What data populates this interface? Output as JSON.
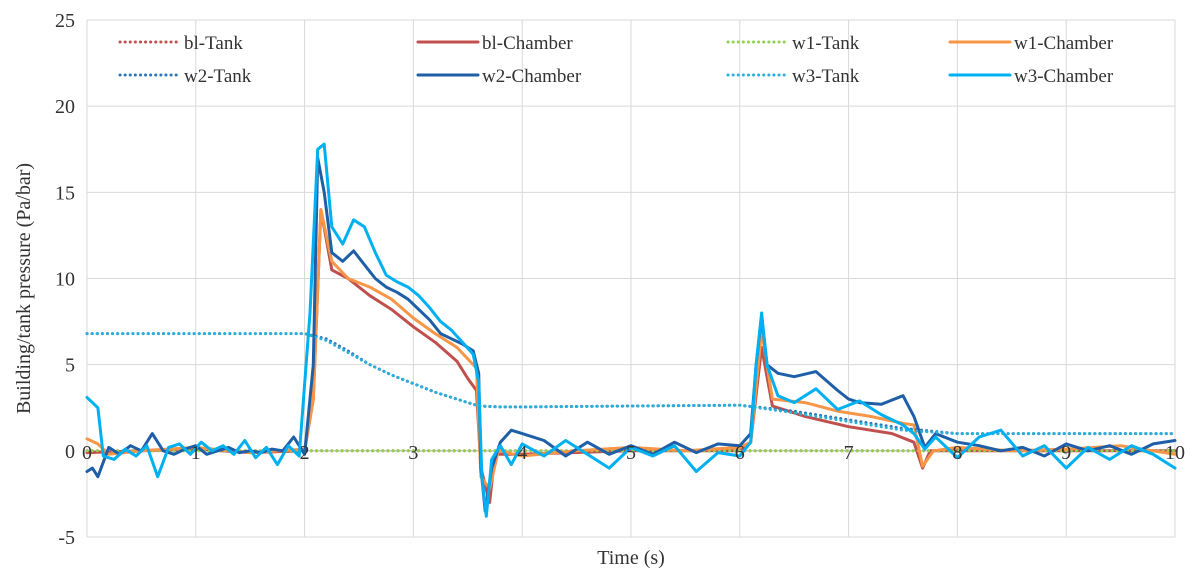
{
  "chart_data": {
    "type": "line",
    "title": "",
    "xlabel": "Time (s)",
    "ylabel": "Building/tank pressure (Pa/bar)",
    "xlim": [
      0,
      10
    ],
    "ylim": [
      -5,
      25
    ],
    "x_ticks": [
      0,
      1,
      2,
      3,
      4,
      5,
      6,
      7,
      8,
      9,
      10
    ],
    "y_ticks": [
      -5,
      0,
      5,
      10,
      15,
      20,
      25
    ],
    "grid": true,
    "legend_position": "top",
    "series": [
      {
        "name": "bl-Tank",
        "color": "#c0504d",
        "style": "dotted",
        "points": [
          [
            0,
            0
          ],
          [
            2,
            0
          ],
          [
            3.6,
            0
          ],
          [
            4,
            0
          ],
          [
            6,
            0
          ],
          [
            8,
            0
          ],
          [
            10,
            0
          ]
        ]
      },
      {
        "name": "bl-Chamber",
        "color": "#c0504d",
        "style": "solid",
        "points": [
          [
            0,
            -0.1
          ],
          [
            0.5,
            0
          ],
          [
            1,
            0.1
          ],
          [
            1.5,
            -0.1
          ],
          [
            2,
            0
          ],
          [
            2.08,
            3
          ],
          [
            2.15,
            14
          ],
          [
            2.25,
            10.5
          ],
          [
            2.4,
            10
          ],
          [
            2.6,
            9
          ],
          [
            2.8,
            8.2
          ],
          [
            3.0,
            7.2
          ],
          [
            3.2,
            6.3
          ],
          [
            3.4,
            5.2
          ],
          [
            3.5,
            4.2
          ],
          [
            3.58,
            3.5
          ],
          [
            3.62,
            -1
          ],
          [
            3.7,
            -3
          ],
          [
            3.75,
            -0.2
          ],
          [
            4,
            -0.2
          ],
          [
            5,
            0
          ],
          [
            6,
            0
          ],
          [
            6.1,
            0.5
          ],
          [
            6.2,
            6
          ],
          [
            6.3,
            2.6
          ],
          [
            6.6,
            2
          ],
          [
            7,
            1.4
          ],
          [
            7.4,
            1
          ],
          [
            7.6,
            0.5
          ],
          [
            7.68,
            -1
          ],
          [
            7.75,
            0
          ],
          [
            8,
            0
          ],
          [
            9,
            0
          ],
          [
            10,
            0
          ]
        ]
      },
      {
        "name": "w1-Tank",
        "color": "#92d050",
        "style": "dotted",
        "points": [
          [
            0,
            0
          ],
          [
            2,
            0
          ],
          [
            4,
            0
          ],
          [
            6,
            0
          ],
          [
            8,
            0
          ],
          [
            10,
            0
          ]
        ]
      },
      {
        "name": "w1-Chamber",
        "color": "#f79646",
        "style": "solid",
        "points": [
          [
            0,
            0.7
          ],
          [
            0.1,
            0.4
          ],
          [
            0.2,
            -0.2
          ],
          [
            0.5,
            0
          ],
          [
            1,
            0.2
          ],
          [
            1.5,
            -0.1
          ],
          [
            2,
            0.1
          ],
          [
            2.08,
            3
          ],
          [
            2.15,
            14
          ],
          [
            2.25,
            11
          ],
          [
            2.4,
            10
          ],
          [
            2.6,
            9.5
          ],
          [
            2.8,
            8.8
          ],
          [
            3.0,
            7.7
          ],
          [
            3.2,
            6.8
          ],
          [
            3.4,
            6
          ],
          [
            3.58,
            4.8
          ],
          [
            3.62,
            -1.5
          ],
          [
            3.7,
            -2.2
          ],
          [
            3.78,
            0
          ],
          [
            4,
            -0.3
          ],
          [
            4.5,
            0
          ],
          [
            5,
            0.2
          ],
          [
            5.5,
            0
          ],
          [
            6,
            0.2
          ],
          [
            6.1,
            0.5
          ],
          [
            6.2,
            7
          ],
          [
            6.3,
            3
          ],
          [
            6.6,
            2.8
          ],
          [
            6.9,
            2.3
          ],
          [
            7.2,
            2
          ],
          [
            7.5,
            1.6
          ],
          [
            7.6,
            1.5
          ],
          [
            7.68,
            -0.9
          ],
          [
            7.78,
            0
          ],
          [
            8,
            0.2
          ],
          [
            8.5,
            0
          ],
          [
            9,
            0.1
          ],
          [
            9.5,
            0.3
          ],
          [
            10,
            -0.2
          ]
        ]
      },
      {
        "name": "w2-Tank",
        "color": "#2e75b6",
        "style": "dotted",
        "points": [
          [
            0,
            6.8
          ],
          [
            0.5,
            6.8
          ],
          [
            1,
            6.8
          ],
          [
            1.5,
            6.8
          ],
          [
            2,
            6.8
          ],
          [
            2.2,
            6.5
          ],
          [
            2.4,
            5.8
          ],
          [
            2.6,
            5.0
          ],
          [
            2.8,
            4.4
          ],
          [
            3.0,
            3.9
          ],
          [
            3.2,
            3.4
          ],
          [
            3.4,
            3.0
          ],
          [
            3.6,
            2.6
          ],
          [
            3.8,
            2.55
          ],
          [
            4,
            2.55
          ],
          [
            5,
            2.6
          ],
          [
            6,
            2.65
          ],
          [
            6.5,
            2.3
          ],
          [
            7,
            1.8
          ],
          [
            7.5,
            1.3
          ],
          [
            8,
            1.0
          ],
          [
            9,
            1.0
          ],
          [
            10,
            1.0
          ]
        ]
      },
      {
        "name": "w2-Chamber",
        "color": "#1f5fa8",
        "style": "solid",
        "points": [
          [
            0,
            -1.2
          ],
          [
            0.05,
            -1.0
          ],
          [
            0.1,
            -1.5
          ],
          [
            0.2,
            0.2
          ],
          [
            0.3,
            -0.2
          ],
          [
            0.4,
            0.3
          ],
          [
            0.5,
            0
          ],
          [
            0.6,
            1.0
          ],
          [
            0.7,
            0
          ],
          [
            0.8,
            -0.2
          ],
          [
            0.9,
            0.1
          ],
          [
            1.0,
            0.3
          ],
          [
            1.1,
            -0.2
          ],
          [
            1.2,
            0
          ],
          [
            1.3,
            0.2
          ],
          [
            1.4,
            -0.1
          ],
          [
            1.5,
            0
          ],
          [
            1.6,
            -0.1
          ],
          [
            1.7,
            0.1
          ],
          [
            1.8,
            0
          ],
          [
            1.9,
            0.8
          ],
          [
            2.0,
            -0.2
          ],
          [
            2.08,
            5
          ],
          [
            2.12,
            17
          ],
          [
            2.18,
            15
          ],
          [
            2.25,
            11.5
          ],
          [
            2.35,
            11
          ],
          [
            2.45,
            11.6
          ],
          [
            2.55,
            10.8
          ],
          [
            2.65,
            10
          ],
          [
            2.75,
            9.5
          ],
          [
            2.85,
            9.2
          ],
          [
            2.95,
            8.8
          ],
          [
            3.05,
            8.2
          ],
          [
            3.15,
            7.6
          ],
          [
            3.25,
            6.8
          ],
          [
            3.35,
            6.5
          ],
          [
            3.45,
            6.2
          ],
          [
            3.55,
            5.8
          ],
          [
            3.6,
            4.5
          ],
          [
            3.62,
            -1.0
          ],
          [
            3.66,
            -3.5
          ],
          [
            3.72,
            -1.0
          ],
          [
            3.8,
            0.5
          ],
          [
            3.9,
            1.2
          ],
          [
            4.0,
            1.0
          ],
          [
            4.2,
            0.6
          ],
          [
            4.4,
            -0.3
          ],
          [
            4.6,
            0.5
          ],
          [
            4.8,
            -0.2
          ],
          [
            5.0,
            0.3
          ],
          [
            5.2,
            -0.2
          ],
          [
            5.4,
            0.5
          ],
          [
            5.6,
            -0.1
          ],
          [
            5.8,
            0.4
          ],
          [
            6.0,
            0.3
          ],
          [
            6.1,
            1.0
          ],
          [
            6.15,
            5
          ],
          [
            6.2,
            7.8
          ],
          [
            6.25,
            5
          ],
          [
            6.35,
            4.5
          ],
          [
            6.5,
            4.3
          ],
          [
            6.7,
            4.6
          ],
          [
            6.9,
            3.5
          ],
          [
            7.0,
            3.0
          ],
          [
            7.1,
            2.8
          ],
          [
            7.3,
            2.7
          ],
          [
            7.5,
            3.2
          ],
          [
            7.6,
            2
          ],
          [
            7.7,
            0.2
          ],
          [
            7.8,
            1.0
          ],
          [
            8.0,
            0.5
          ],
          [
            8.2,
            0.3
          ],
          [
            8.4,
            0
          ],
          [
            8.6,
            0.2
          ],
          [
            8.8,
            -0.3
          ],
          [
            9.0,
            0.4
          ],
          [
            9.2,
            0
          ],
          [
            9.4,
            0.3
          ],
          [
            9.6,
            -0.2
          ],
          [
            9.8,
            0.4
          ],
          [
            10.0,
            0.6
          ]
        ]
      },
      {
        "name": "w3-Tank",
        "color": "#2bb0d9",
        "style": "dotted",
        "points": [
          [
            0,
            6.8
          ],
          [
            0.5,
            6.8
          ],
          [
            1,
            6.8
          ],
          [
            1.5,
            6.8
          ],
          [
            2,
            6.8
          ],
          [
            2.2,
            6.4
          ],
          [
            2.4,
            5.7
          ],
          [
            2.6,
            5.0
          ],
          [
            2.8,
            4.4
          ],
          [
            3.0,
            3.9
          ],
          [
            3.2,
            3.4
          ],
          [
            3.4,
            3.0
          ],
          [
            3.6,
            2.6
          ],
          [
            3.8,
            2.55
          ],
          [
            4,
            2.55
          ],
          [
            5,
            2.6
          ],
          [
            6,
            2.65
          ],
          [
            6.5,
            2.2
          ],
          [
            7,
            1.7
          ],
          [
            7.5,
            1.2
          ],
          [
            8,
            1.0
          ],
          [
            9,
            1.0
          ],
          [
            10,
            1.0
          ]
        ]
      },
      {
        "name": "w3-Chamber",
        "color": "#00b0f0",
        "style": "solid",
        "points": [
          [
            0,
            3.1
          ],
          [
            0.05,
            2.8
          ],
          [
            0.1,
            2.5
          ],
          [
            0.15,
            -0.3
          ],
          [
            0.25,
            -0.5
          ],
          [
            0.35,
            0.1
          ],
          [
            0.45,
            -0.3
          ],
          [
            0.55,
            0.3
          ],
          [
            0.65,
            -1.5
          ],
          [
            0.75,
            0.2
          ],
          [
            0.85,
            0.4
          ],
          [
            0.95,
            -0.2
          ],
          [
            1.05,
            0.5
          ],
          [
            1.15,
            0
          ],
          [
            1.25,
            0.3
          ],
          [
            1.35,
            -0.2
          ],
          [
            1.45,
            0.6
          ],
          [
            1.55,
            -0.4
          ],
          [
            1.65,
            0.2
          ],
          [
            1.75,
            -0.8
          ],
          [
            1.85,
            0.3
          ],
          [
            1.95,
            -0.3
          ],
          [
            2.05,
            8
          ],
          [
            2.12,
            17.5
          ],
          [
            2.18,
            17.8
          ],
          [
            2.25,
            13
          ],
          [
            2.35,
            12
          ],
          [
            2.45,
            13.4
          ],
          [
            2.55,
            13
          ],
          [
            2.65,
            11.5
          ],
          [
            2.75,
            10.2
          ],
          [
            2.85,
            9.8
          ],
          [
            2.95,
            9.5
          ],
          [
            3.05,
            9
          ],
          [
            3.15,
            8.3
          ],
          [
            3.25,
            7.5
          ],
          [
            3.35,
            7
          ],
          [
            3.45,
            6.3
          ],
          [
            3.55,
            5.6
          ],
          [
            3.6,
            4
          ],
          [
            3.63,
            -1.5
          ],
          [
            3.67,
            -3.8
          ],
          [
            3.72,
            -0.5
          ],
          [
            3.8,
            0.3
          ],
          [
            3.9,
            -0.8
          ],
          [
            4.0,
            0.4
          ],
          [
            4.2,
            -0.3
          ],
          [
            4.4,
            0.6
          ],
          [
            4.6,
            -0.2
          ],
          [
            4.8,
            -1.0
          ],
          [
            5.0,
            0.2
          ],
          [
            5.2,
            -0.3
          ],
          [
            5.4,
            0.3
          ],
          [
            5.6,
            -1.2
          ],
          [
            5.8,
            -0.1
          ],
          [
            6.0,
            -0.3
          ],
          [
            6.1,
            0.5
          ],
          [
            6.15,
            5
          ],
          [
            6.2,
            8
          ],
          [
            6.25,
            5
          ],
          [
            6.35,
            3.2
          ],
          [
            6.5,
            2.8
          ],
          [
            6.7,
            3.6
          ],
          [
            6.9,
            2.4
          ],
          [
            7.1,
            2.9
          ],
          [
            7.3,
            2.1
          ],
          [
            7.5,
            1.5
          ],
          [
            7.6,
            1.0
          ],
          [
            7.7,
            0.1
          ],
          [
            7.8,
            0.8
          ],
          [
            8.0,
            -0.4
          ],
          [
            8.2,
            0.8
          ],
          [
            8.4,
            1.2
          ],
          [
            8.6,
            -0.3
          ],
          [
            8.8,
            0.3
          ],
          [
            9.0,
            -1.0
          ],
          [
            9.2,
            0.2
          ],
          [
            9.4,
            -0.5
          ],
          [
            9.6,
            0.3
          ],
          [
            9.8,
            -0.2
          ],
          [
            10.0,
            -1.0
          ]
        ]
      }
    ]
  }
}
